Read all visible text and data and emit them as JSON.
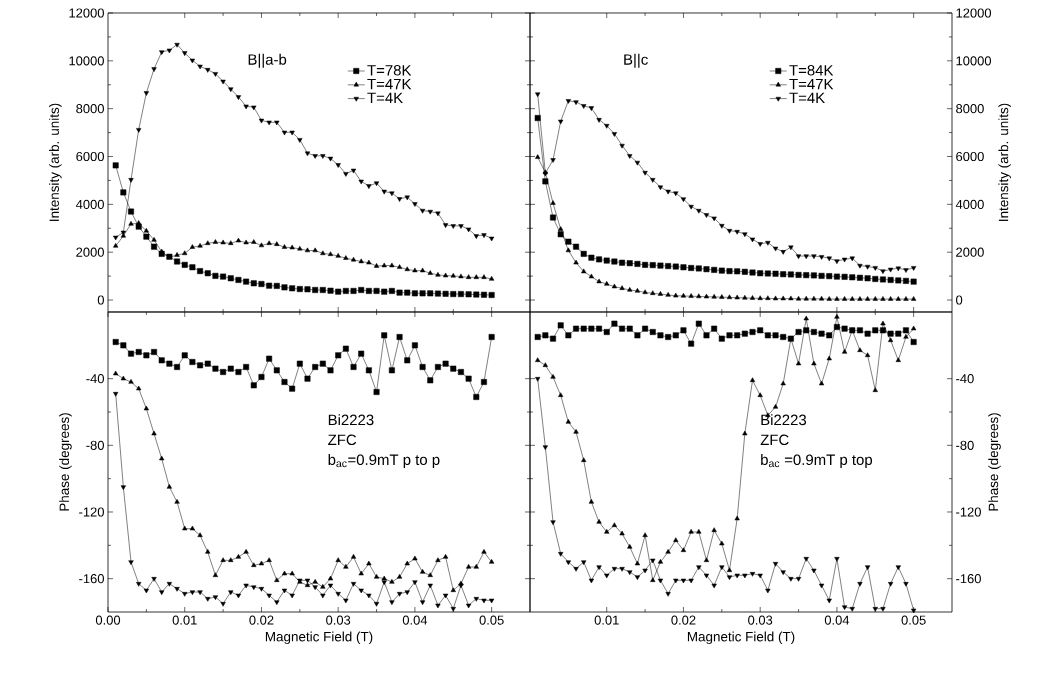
{
  "chart_data": [
    {
      "type": "line",
      "ylabel": "Intensity (arb. units)",
      "annotations": [
        "B||a-b"
      ],
      "legend": "top right",
      "tick_labels": "y",
      "xlim": [
        0,
        0.055
      ],
      "xticks": [
        0.01,
        0.02,
        0.03,
        0.04,
        0.05
      ],
      "ylim": [
        -500,
        12000
      ],
      "yticks": [
        0,
        2000,
        4000,
        6000,
        8000,
        10000,
        12000
      ],
      "x": [
        0.001,
        0.002,
        0.003,
        0.004,
        0.005,
        0.006,
        0.007,
        0.008,
        0.009,
        0.01,
        0.011,
        0.012,
        0.013,
        0.014,
        0.015,
        0.016,
        0.017,
        0.018,
        0.019,
        0.02,
        0.021,
        0.022,
        0.023,
        0.024,
        0.025,
        0.026,
        0.027,
        0.028,
        0.029,
        0.03,
        0.031,
        0.032,
        0.033,
        0.034,
        0.035,
        0.036,
        0.037,
        0.038,
        0.039,
        0.04,
        0.041,
        0.042,
        0.043,
        0.044,
        0.045,
        0.046,
        0.047,
        0.048,
        0.049,
        0.05
      ],
      "series": [
        {
          "name": "T=78K",
          "color": "#000000",
          "marker": "square",
          "values": [
            5630,
            4500,
            3700,
            3070,
            2650,
            2230,
            1930,
            1810,
            1610,
            1470,
            1370,
            1210,
            1120,
            1010,
            980,
            910,
            840,
            770,
            700,
            670,
            600,
            590,
            530,
            490,
            460,
            450,
            420,
            420,
            390,
            350,
            380,
            380,
            420,
            380,
            380,
            350,
            380,
            310,
            310,
            280,
            280,
            280,
            270,
            260,
            250,
            250,
            240,
            230,
            220,
            210
          ]
        },
        {
          "name": "T=47K",
          "color": "#000000",
          "marker": "triangle",
          "values": [
            2260,
            2680,
            3180,
            3210,
            2890,
            2510,
            2020,
            1790,
            1880,
            1950,
            2210,
            2260,
            2370,
            2420,
            2400,
            2370,
            2480,
            2400,
            2420,
            2280,
            2370,
            2330,
            2210,
            2190,
            2140,
            2070,
            2070,
            1950,
            1910,
            1840,
            1750,
            1680,
            1610,
            1560,
            1420,
            1440,
            1440,
            1370,
            1280,
            1230,
            1230,
            1120,
            1050,
            1020,
            1010,
            980,
            950,
            950,
            950,
            880
          ]
        },
        {
          "name": "T=4K",
          "color": "#000000",
          "marker": "triangle-down",
          "values": [
            2620,
            2830,
            5030,
            7120,
            8660,
            9660,
            10370,
            10440,
            10680,
            10330,
            10020,
            9770,
            9630,
            9460,
            9140,
            8820,
            8490,
            8100,
            8060,
            7510,
            7430,
            7430,
            7010,
            7010,
            6700,
            6140,
            6030,
            6030,
            5920,
            5650,
            5280,
            5420,
            4960,
            4770,
            4890,
            4540,
            4470,
            4230,
            4300,
            4020,
            3740,
            3700,
            3630,
            3140,
            3100,
            3100,
            2960,
            2680,
            2720,
            2580
          ]
        }
      ]
    },
    {
      "type": "line",
      "y2label": "Intensity (arb. units)",
      "annotations": [
        "B||c"
      ],
      "legend": "top right",
      "tick_labels": "y",
      "xlim": [
        0,
        0.055
      ],
      "xticks": [
        0.01,
        0.02,
        0.03,
        0.04,
        0.05
      ],
      "y2lim": [
        -500,
        12000
      ],
      "y2ticks": [
        0,
        2000,
        4000,
        6000,
        8000,
        10000,
        12000
      ],
      "x": [
        0.001,
        0.002,
        0.003,
        0.004,
        0.005,
        0.006,
        0.007,
        0.008,
        0.009,
        0.01,
        0.011,
        0.012,
        0.013,
        0.014,
        0.015,
        0.016,
        0.017,
        0.018,
        0.019,
        0.02,
        0.021,
        0.022,
        0.023,
        0.024,
        0.025,
        0.026,
        0.027,
        0.028,
        0.029,
        0.03,
        0.031,
        0.032,
        0.033,
        0.034,
        0.035,
        0.036,
        0.037,
        0.038,
        0.039,
        0.04,
        0.041,
        0.042,
        0.043,
        0.044,
        0.045,
        0.046,
        0.047,
        0.048,
        0.049,
        0.05
      ],
      "series": [
        {
          "name": "T=84K",
          "color": "#000000",
          "marker": "square",
          "axis": "y2",
          "values": [
            7610,
            4960,
            3450,
            2750,
            2440,
            2230,
            1930,
            1770,
            1700,
            1650,
            1610,
            1560,
            1540,
            1510,
            1470,
            1460,
            1440,
            1420,
            1400,
            1370,
            1340,
            1320,
            1290,
            1260,
            1230,
            1210,
            1200,
            1180,
            1150,
            1120,
            1110,
            1100,
            1080,
            1070,
            1050,
            1040,
            1030,
            1010,
            1000,
            980,
            970,
            950,
            930,
            910,
            880,
            860,
            840,
            820,
            800,
            770
          ]
        },
        {
          "name": "T=47K",
          "color": "#000000",
          "marker": "triangle",
          "axis": "y2",
          "values": [
            5970,
            5330,
            4050,
            2960,
            2070,
            1560,
            1190,
            980,
            770,
            670,
            560,
            490,
            420,
            380,
            320,
            280,
            250,
            210,
            180,
            170,
            160,
            150,
            140,
            130,
            120,
            110,
            100,
            90,
            80,
            70,
            70,
            60,
            60,
            60,
            50,
            50,
            50,
            50,
            40,
            40,
            40,
            40,
            40,
            40,
            40,
            40,
            40,
            40,
            40,
            40
          ]
        },
        {
          "name": "T=4K",
          "color": "#000000",
          "marker": "triangle-down",
          "axis": "y2",
          "values": [
            8610,
            5300,
            5860,
            7470,
            8330,
            8280,
            8120,
            8030,
            7540,
            7290,
            6950,
            6460,
            6030,
            5750,
            5330,
            5030,
            4720,
            4540,
            4470,
            4220,
            3910,
            3740,
            3560,
            3420,
            3110,
            2900,
            2860,
            2760,
            2540,
            2350,
            2400,
            2160,
            2020,
            2210,
            1840,
            1840,
            1840,
            1810,
            1750,
            1630,
            1700,
            1750,
            1440,
            1400,
            1350,
            1210,
            1280,
            1330,
            1260,
            1350
          ]
        }
      ]
    },
    {
      "type": "line",
      "xlabel": "Magnetic Field (T)",
      "ylabel": "Phase (degrees)",
      "annotations": [
        "Bi2223",
        "ZFC",
        "b$_{ac}$=0.9mT p to p"
      ],
      "xlim": [
        0,
        0.055
      ],
      "xticks": [
        {
          "value": 0,
          "label": "0.00"
        },
        0.01,
        0.02,
        0.03,
        0.04,
        0.05
      ],
      "ylim": [
        -180,
        0
      ],
      "yticks": [
        -160,
        -120,
        -80,
        -40
      ],
      "x": [
        0.001,
        0.002,
        0.003,
        0.004,
        0.005,
        0.006,
        0.007,
        0.008,
        0.009,
        0.01,
        0.011,
        0.012,
        0.013,
        0.014,
        0.015,
        0.016,
        0.017,
        0.018,
        0.019,
        0.02,
        0.021,
        0.022,
        0.023,
        0.024,
        0.025,
        0.026,
        0.027,
        0.028,
        0.029,
        0.03,
        0.031,
        0.032,
        0.033,
        0.034,
        0.035,
        0.036,
        0.037,
        0.038,
        0.039,
        0.04,
        0.041,
        0.042,
        0.043,
        0.044,
        0.045,
        0.046,
        0.047,
        0.048,
        0.049,
        0.05
      ],
      "series": [
        {
          "color": "#000000",
          "marker": "square",
          "values": [
            -18,
            -20,
            -25,
            -24,
            -26,
            -24,
            -29,
            -31,
            -33,
            -26,
            -30,
            -32,
            -31,
            -34,
            -36,
            -34,
            -36,
            -33,
            -44,
            -39,
            -28,
            -35,
            -42,
            -46,
            -31,
            -40,
            -33,
            -31,
            -35,
            -26,
            -22,
            -33,
            -25,
            -35,
            -48,
            -14,
            -35,
            -15,
            -29,
            -20,
            -33,
            -41,
            -33,
            -31,
            -34,
            -36,
            -40,
            -51,
            -42,
            -15
          ]
        },
        {
          "color": "#000000",
          "marker": "triangle",
          "values": [
            -37,
            -40,
            -42,
            -46,
            -58,
            -73,
            -88,
            -105,
            -114,
            -130,
            -130,
            -134,
            -144,
            -158,
            -149,
            -149,
            -147,
            -144,
            -152,
            -151,
            -149,
            -161,
            -157,
            -157,
            -162,
            -164,
            -162,
            -165,
            -160,
            -149,
            -153,
            -147,
            -157,
            -151,
            -159,
            -160,
            -162,
            -159,
            -151,
            -148,
            -156,
            -158,
            -149,
            -147,
            -167,
            -163,
            -153,
            -153,
            -144,
            -150
          ]
        },
        {
          "color": "#000000",
          "marker": "triangle-down",
          "values": [
            -49,
            -105,
            -150,
            -163,
            -167,
            -160,
            -168,
            -163,
            -166,
            -169,
            -168,
            -168,
            -172,
            -171,
            -175,
            -168,
            -170,
            -164,
            -165,
            -166,
            -170,
            -174,
            -167,
            -170,
            -161,
            -161,
            -165,
            -170,
            -164,
            -169,
            -173,
            -163,
            -167,
            -170,
            -175,
            -162,
            -174,
            -169,
            -168,
            -162,
            -174,
            -164,
            -176,
            -170,
            -178,
            -164,
            -176,
            -172,
            -173,
            -173
          ]
        }
      ]
    },
    {
      "type": "line",
      "xlabel": "Magnetic Field (T)",
      "y2label": "Phase (degrees)",
      "annotations": [
        "Bi2223",
        "ZFC",
        "b$_{ac}$ =0.9mT p top"
      ],
      "xlim": [
        0,
        0.055
      ],
      "xticks": [
        0.01,
        0.02,
        0.03,
        0.04,
        0.05
      ],
      "y2lim": [
        -180,
        0
      ],
      "y2ticks": [
        -160,
        -120,
        -80,
        -40
      ],
      "x": [
        0.001,
        0.002,
        0.003,
        0.004,
        0.005,
        0.006,
        0.007,
        0.008,
        0.009,
        0.01,
        0.011,
        0.012,
        0.013,
        0.014,
        0.015,
        0.016,
        0.017,
        0.018,
        0.019,
        0.02,
        0.021,
        0.022,
        0.023,
        0.024,
        0.025,
        0.026,
        0.027,
        0.028,
        0.029,
        0.03,
        0.031,
        0.032,
        0.033,
        0.034,
        0.035,
        0.036,
        0.037,
        0.038,
        0.039,
        0.04,
        0.041,
        0.042,
        0.043,
        0.044,
        0.045,
        0.046,
        0.047,
        0.048,
        0.049,
        0.05
      ],
      "series": [
        {
          "color": "#000000",
          "marker": "square",
          "axis": "y2",
          "values": [
            -15,
            -14,
            -16,
            -8,
            -14,
            -10,
            -10,
            -10,
            -10,
            -12,
            -7,
            -10,
            -10,
            -14,
            -10,
            -12,
            -14,
            -15,
            -14,
            -11,
            -19,
            -7,
            -14,
            -10,
            -16,
            -14,
            -14,
            -13,
            -12,
            -11,
            -14,
            -14,
            -15,
            -16,
            -12,
            -11,
            -12,
            -13,
            -14,
            -9,
            -10,
            -11,
            -11,
            -13,
            -11,
            -11,
            -13,
            -13,
            -11,
            -18
          ]
        },
        {
          "color": "#000000",
          "marker": "triangle",
          "axis": "y2",
          "values": [
            -29,
            -32,
            -39,
            -50,
            -66,
            -72,
            -89,
            -114,
            -126,
            -132,
            -128,
            -133,
            -141,
            -151,
            -134,
            -161,
            -150,
            -144,
            -137,
            -143,
            -132,
            -132,
            -149,
            -131,
            -139,
            -155,
            -124,
            -73,
            -41,
            -50,
            -62,
            -57,
            -43,
            -16,
            -31,
            -4,
            -31,
            -43,
            -28,
            -3,
            -24,
            -11,
            -23,
            -26,
            -47,
            -7,
            -17,
            -29,
            -15,
            -10
          ]
        },
        {
          "color": "#000000",
          "marker": "triangle-down",
          "axis": "y2",
          "values": [
            -40,
            -81,
            -126,
            -145,
            -150,
            -154,
            -150,
            -161,
            -153,
            -158,
            -154,
            -154,
            -156,
            -159,
            -155,
            -149,
            -161,
            -169,
            -161,
            -161,
            -161,
            -153,
            -158,
            -164,
            -153,
            -159,
            -158,
            -158,
            -157,
            -158,
            -167,
            -151,
            -156,
            -160,
            -160,
            -148,
            -155,
            -164,
            -173,
            -148,
            -177,
            -178,
            -163,
            -153,
            -178,
            -178,
            -163,
            -153,
            -163,
            -179
          ]
        }
      ]
    }
  ]
}
